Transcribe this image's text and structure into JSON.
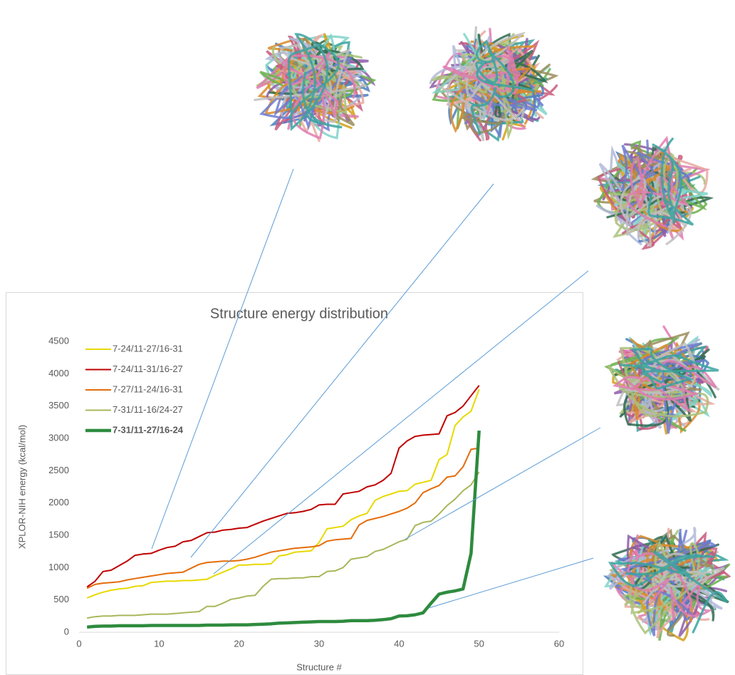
{
  "chart_data": {
    "type": "line",
    "title": "Structure energy distribution",
    "xlabel": "Structure #",
    "ylabel": "XPLOR-NIH energy (kcal/mol)",
    "x": [
      1,
      2,
      3,
      4,
      5,
      6,
      7,
      8,
      9,
      10,
      11,
      12,
      13,
      14,
      15,
      16,
      17,
      18,
      19,
      20,
      21,
      22,
      23,
      24,
      25,
      26,
      27,
      28,
      29,
      30,
      31,
      32,
      33,
      34,
      35,
      36,
      37,
      38,
      39,
      40,
      41,
      42,
      43,
      44,
      45,
      46,
      47,
      48,
      49,
      50
    ],
    "xlim": [
      0,
      60
    ],
    "xticks": [
      0,
      10,
      20,
      30,
      40,
      50,
      60
    ],
    "ylim": [
      0,
      4500
    ],
    "yticks": [
      0,
      500,
      1000,
      1500,
      2000,
      2500,
      3000,
      3500,
      4000,
      4500
    ],
    "grid": false,
    "legend": "upper left",
    "series": [
      {
        "name": "7-24/11-27/16-31",
        "color": "#e8d900",
        "linewidth": 2,
        "values": [
          530,
          580,
          620,
          650,
          670,
          680,
          710,
          720,
          770,
          780,
          790,
          790,
          800,
          800,
          810,
          820,
          880,
          930,
          980,
          1040,
          1040,
          1050,
          1050,
          1060,
          1180,
          1200,
          1240,
          1250,
          1260,
          1390,
          1600,
          1620,
          1640,
          1740,
          1800,
          1840,
          2040,
          2100,
          2140,
          2180,
          2190,
          2290,
          2320,
          2350,
          2670,
          2750,
          3200,
          3330,
          3420,
          3760
        ]
      },
      {
        "name": "7-24/11-31/16-27",
        "color": "#c00000",
        "linewidth": 2,
        "values": [
          700,
          790,
          940,
          960,
          1030,
          1100,
          1190,
          1210,
          1220,
          1270,
          1310,
          1330,
          1400,
          1420,
          1480,
          1540,
          1550,
          1580,
          1590,
          1610,
          1620,
          1670,
          1720,
          1760,
          1800,
          1840,
          1850,
          1870,
          1900,
          1970,
          1980,
          1980,
          2140,
          2160,
          2180,
          2250,
          2280,
          2350,
          2460,
          2850,
          2960,
          3030,
          3050,
          3060,
          3070,
          3350,
          3400,
          3500,
          3660,
          3820
        ]
      },
      {
        "name": "7-27/11-24/16-31",
        "color": "#e46c0a",
        "linewidth": 2,
        "values": [
          680,
          740,
          760,
          770,
          780,
          810,
          830,
          850,
          870,
          890,
          910,
          920,
          930,
          990,
          1050,
          1080,
          1090,
          1100,
          1100,
          1110,
          1130,
          1160,
          1200,
          1240,
          1260,
          1280,
          1300,
          1310,
          1320,
          1340,
          1410,
          1430,
          1440,
          1450,
          1660,
          1730,
          1760,
          1790,
          1830,
          1870,
          1920,
          2000,
          2160,
          2220,
          2270,
          2400,
          2420,
          2560,
          2830,
          2850
        ]
      },
      {
        "name": "7-31/11-16/24-27",
        "color": "#a8b75a",
        "linewidth": 2,
        "values": [
          220,
          240,
          250,
          250,
          260,
          260,
          260,
          270,
          280,
          280,
          280,
          290,
          300,
          310,
          320,
          400,
          400,
          450,
          510,
          530,
          560,
          570,
          710,
          820,
          830,
          830,
          840,
          840,
          860,
          860,
          940,
          950,
          1000,
          1130,
          1150,
          1170,
          1250,
          1280,
          1340,
          1400,
          1440,
          1650,
          1700,
          1720,
          1830,
          1960,
          2060,
          2190,
          2280,
          2480
        ]
      },
      {
        "name": "7-31/11-27/16-24",
        "color": "#2e8b3e",
        "linewidth": 4.5,
        "values": [
          80,
          90,
          95,
          95,
          100,
          100,
          100,
          100,
          105,
          105,
          105,
          105,
          105,
          105,
          105,
          110,
          110,
          110,
          115,
          115,
          115,
          120,
          125,
          130,
          140,
          145,
          150,
          155,
          160,
          165,
          165,
          165,
          170,
          180,
          180,
          180,
          185,
          195,
          210,
          250,
          255,
          270,
          300,
          450,
          590,
          620,
          640,
          670,
          1220,
          3120
        ]
      }
    ]
  }
}
